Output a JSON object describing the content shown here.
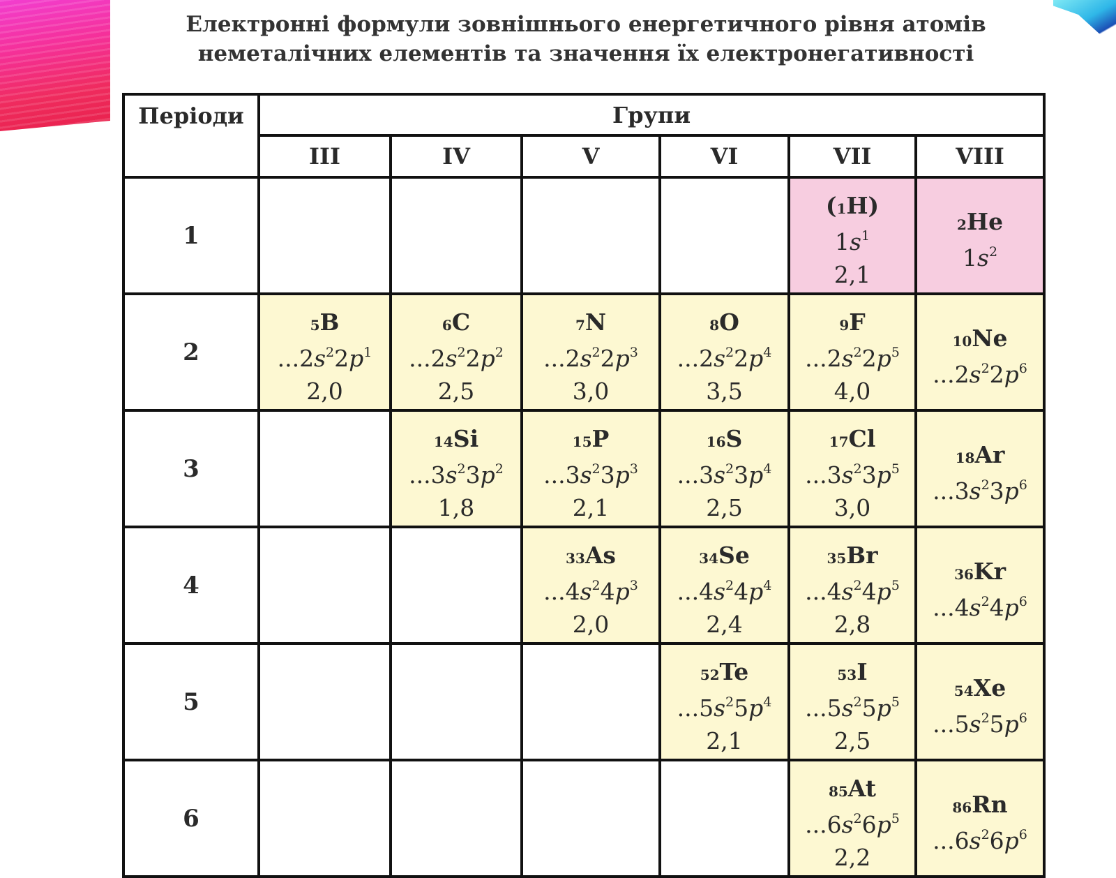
{
  "title_line1": "Електронні формули зовнішнього енергетичного рівня атомів",
  "title_line2": "неметалічних елементів та значення їх електронегативності",
  "header": {
    "periods": "Періоди",
    "groups": "Групи",
    "group_labels": [
      "III",
      "IV",
      "V",
      "VI",
      "VII",
      "VIII"
    ]
  },
  "colors": {
    "pink": "#f7cde0",
    "yellow": "#fdf8d2"
  },
  "rows": [
    {
      "period": "1",
      "cells": [
        null,
        null,
        null,
        null,
        {
          "z": "1",
          "sym": "H",
          "paren": true,
          "lead": "1",
          "s": "1",
          "mid": "",
          "p": "",
          "en": "2,1",
          "color": "pink"
        },
        {
          "z": "2",
          "sym": "He",
          "lead": "1",
          "s": "2",
          "mid": "",
          "p": "",
          "en": "",
          "color": "pink"
        }
      ]
    },
    {
      "period": "2",
      "cells": [
        {
          "z": "5",
          "sym": "B",
          "lead": "...2",
          "s": "2",
          "mid": "2",
          "p": "1",
          "en": "2,0",
          "color": "yellow"
        },
        {
          "z": "6",
          "sym": "C",
          "lead": "...2",
          "s": "2",
          "mid": "2",
          "p": "2",
          "en": "2,5",
          "color": "yellow"
        },
        {
          "z": "7",
          "sym": "N",
          "lead": "...2",
          "s": "2",
          "mid": "2",
          "p": "3",
          "en": "3,0",
          "color": "yellow"
        },
        {
          "z": "8",
          "sym": "O",
          "lead": "...2",
          "s": "2",
          "mid": "2",
          "p": "4",
          "en": "3,5",
          "color": "yellow"
        },
        {
          "z": "9",
          "sym": "F",
          "lead": "...2",
          "s": "2",
          "mid": "2",
          "p": "5",
          "en": "4,0",
          "color": "yellow"
        },
        {
          "z": "10",
          "sym": "Ne",
          "lead": "...2",
          "s": "2",
          "mid": "2",
          "p": "6",
          "en": "",
          "color": "yellow"
        }
      ]
    },
    {
      "period": "3",
      "cells": [
        null,
        {
          "z": "14",
          "sym": "Si",
          "lead": "...3",
          "s": "2",
          "mid": "3",
          "p": "2",
          "en": "1,8",
          "color": "yellow"
        },
        {
          "z": "15",
          "sym": "P",
          "lead": "...3",
          "s": "2",
          "mid": "3",
          "p": "3",
          "en": "2,1",
          "color": "yellow"
        },
        {
          "z": "16",
          "sym": "S",
          "lead": "...3",
          "s": "2",
          "mid": "3",
          "p": "4",
          "en": "2,5",
          "color": "yellow"
        },
        {
          "z": "17",
          "sym": "Cl",
          "lead": "...3",
          "s": "2",
          "mid": "3",
          "p": "5",
          "en": "3,0",
          "color": "yellow"
        },
        {
          "z": "18",
          "sym": "Ar",
          "lead": "...3",
          "s": "2",
          "mid": "3",
          "p": "6",
          "en": "",
          "color": "yellow"
        }
      ]
    },
    {
      "period": "4",
      "cells": [
        null,
        null,
        {
          "z": "33",
          "sym": "As",
          "lead": "...4",
          "s": "2",
          "mid": "4",
          "p": "3",
          "en": "2,0",
          "color": "yellow"
        },
        {
          "z": "34",
          "sym": "Se",
          "lead": "...4",
          "s": "2",
          "mid": "4",
          "p": "4",
          "en": "2,4",
          "color": "yellow"
        },
        {
          "z": "35",
          "sym": "Br",
          "lead": "...4",
          "s": "2",
          "mid": "4",
          "p": "5",
          "en": "2,8",
          "color": "yellow"
        },
        {
          "z": "36",
          "sym": "Kr",
          "lead": "...4",
          "s": "2",
          "mid": "4",
          "p": "6",
          "en": "",
          "color": "yellow"
        }
      ]
    },
    {
      "period": "5",
      "cells": [
        null,
        null,
        null,
        {
          "z": "52",
          "sym": "Te",
          "lead": "...5",
          "s": "2",
          "mid": "5",
          "p": "4",
          "en": "2,1",
          "color": "yellow"
        },
        {
          "z": "53",
          "sym": "I",
          "lead": "...5",
          "s": "2",
          "mid": "5",
          "p": "5",
          "en": "2,5",
          "color": "yellow"
        },
        {
          "z": "54",
          "sym": "Xe",
          "lead": "...5",
          "s": "2",
          "mid": "5",
          "p": "6",
          "en": "",
          "color": "yellow"
        }
      ]
    },
    {
      "period": "6",
      "cells": [
        null,
        null,
        null,
        null,
        {
          "z": "85",
          "sym": "At",
          "lead": "...6",
          "s": "2",
          "mid": "6",
          "p": "5",
          "en": "2,2",
          "color": "yellow"
        },
        {
          "z": "86",
          "sym": "Rn",
          "lead": "...6",
          "s": "2",
          "mid": "6",
          "p": "6",
          "en": "",
          "color": "yellow"
        }
      ]
    }
  ]
}
